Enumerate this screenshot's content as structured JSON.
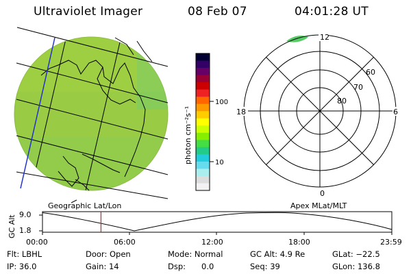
{
  "header": {
    "instrument": "Ultraviolet Imager",
    "date": "08 Feb 07",
    "time": "04:01:28 UT"
  },
  "colorbar": {
    "label": "photon cm⁻²s⁻¹",
    "ticks": [
      "100",
      "10"
    ],
    "colors": [
      "#000033",
      "#330066",
      "#660066",
      "#990033",
      "#cc0000",
      "#ee2222",
      "#ff6600",
      "#ff9900",
      "#ffcc00",
      "#ffff00",
      "#ccff00",
      "#88ee00",
      "#44dd44",
      "#22cc88",
      "#22ccdd",
      "#66ddee",
      "#aaeeee",
      "#dddddd",
      "#f2f2f2"
    ]
  },
  "geo_map": {
    "label": "Geographic Lat/Lon",
    "fill_color": "#99cc44"
  },
  "polar_plot": {
    "label": "Apex MLat/MLT",
    "hour_labels": {
      "top": "12",
      "left": "18",
      "right": "6",
      "bottom": "0"
    },
    "lat_labels": [
      "60",
      "70",
      "80"
    ]
  },
  "altitude_plot": {
    "ylabel": "GC Alt",
    "yticks": [
      "9.0",
      "1.8"
    ],
    "xticks": [
      "00:00",
      "06:00",
      "12:00",
      "18:00",
      "23:59"
    ],
    "current_time_hours": 4.02
  },
  "info": {
    "filter": "Flt: LBHL",
    "door": "Door: Open",
    "mode": "Mode: Normal",
    "gc_alt": "GC Alt: 4.9 Re",
    "glat": "GLat: −22.5",
    "ip": "IP: 36.0",
    "gain": "Gain: 14",
    "dsp_label": "Dsp:",
    "dsp_value": "0.0",
    "seq": "Seq: 39",
    "glon": "GLon: 136.8"
  }
}
